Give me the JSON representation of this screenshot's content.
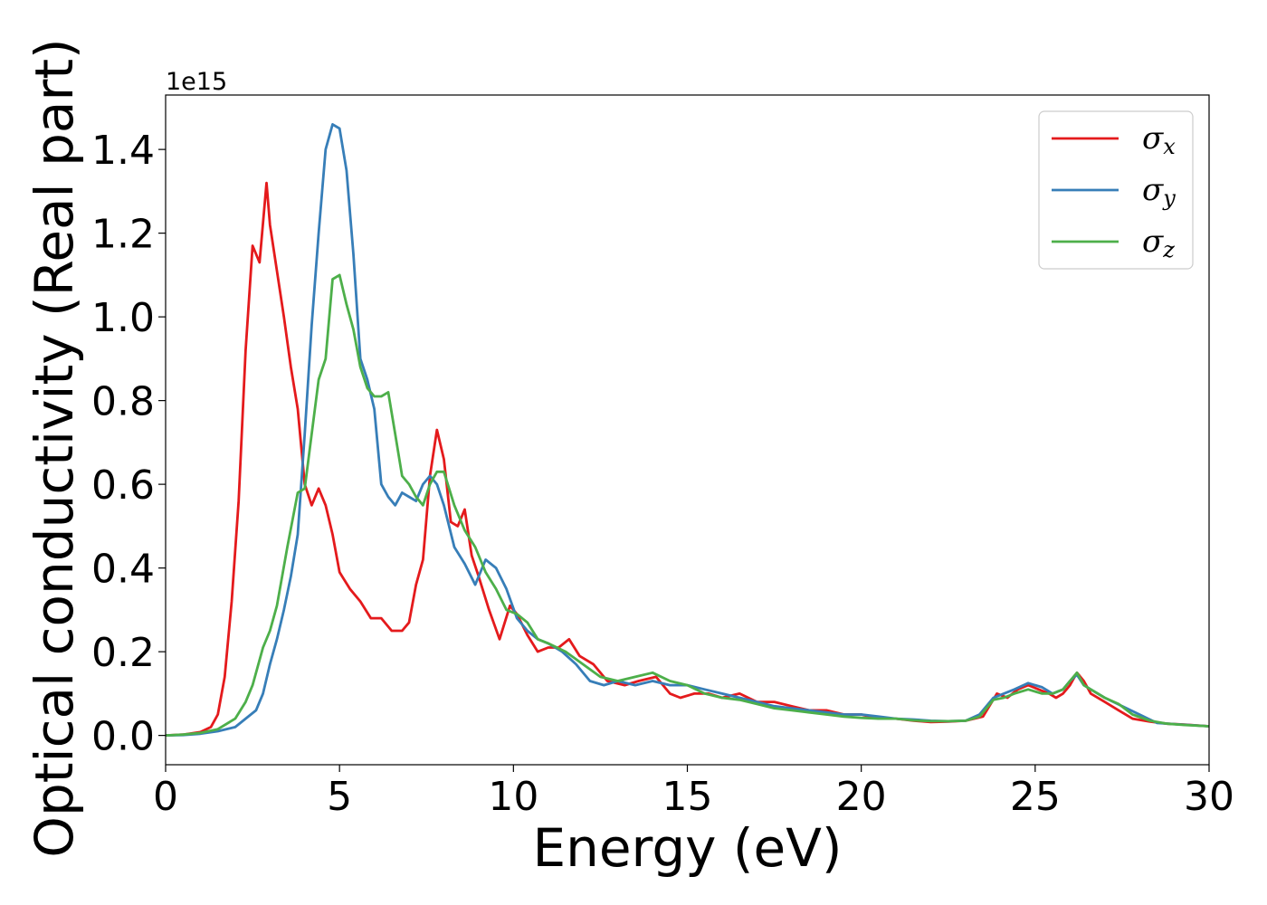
{
  "chart_data": {
    "type": "line",
    "title": "",
    "xlabel": "Energy (eV)",
    "ylabel": "Optical conductivity (Real part)",
    "y_offset_label": "1e15",
    "xlim": [
      0,
      30
    ],
    "ylim": [
      -0.07,
      1.53
    ],
    "xticks": [
      0,
      5,
      10,
      15,
      20,
      25,
      30
    ],
    "xtick_labels": [
      "0",
      "5",
      "10",
      "15",
      "20",
      "25",
      "30"
    ],
    "yticks": [
      0.0,
      0.2,
      0.4,
      0.6,
      0.8,
      1.0,
      1.2,
      1.4
    ],
    "ytick_labels": [
      "0.0",
      "0.2",
      "0.4",
      "0.6",
      "0.8",
      "1.0",
      "1.2",
      "1.4"
    ],
    "grid": false,
    "legend_position": "top-right",
    "series": [
      {
        "name": "σx",
        "symbol": "σ",
        "subscript": "x",
        "color": "#e41a1c",
        "x": [
          0,
          0.5,
          1.0,
          1.3,
          1.5,
          1.7,
          1.9,
          2.1,
          2.3,
          2.5,
          2.7,
          2.9,
          3.0,
          3.2,
          3.4,
          3.6,
          3.8,
          4.0,
          4.2,
          4.4,
          4.6,
          4.8,
          5.0,
          5.3,
          5.6,
          5.9,
          6.2,
          6.5,
          6.8,
          7.0,
          7.2,
          7.4,
          7.6,
          7.8,
          8.0,
          8.2,
          8.4,
          8.6,
          8.8,
          9.0,
          9.3,
          9.6,
          9.9,
          10.1,
          10.4,
          10.7,
          11.0,
          11.3,
          11.6,
          11.9,
          12.3,
          12.7,
          13.2,
          13.6,
          14.1,
          14.5,
          14.8,
          15.2,
          15.6,
          16.0,
          16.5,
          17.0,
          17.5,
          18.0,
          18.5,
          19.0,
          19.5,
          20.0,
          20.5,
          21.0,
          21.5,
          22.0,
          22.5,
          23.0,
          23.5,
          23.9,
          24.2,
          24.5,
          24.8,
          25.1,
          25.4,
          25.6,
          25.8,
          26.0,
          26.2,
          26.4,
          26.6,
          27.0,
          27.4,
          27.8,
          28.3,
          28.8,
          29.3,
          30.0
        ],
        "y": [
          0.0,
          0.002,
          0.008,
          0.02,
          0.05,
          0.14,
          0.32,
          0.56,
          0.92,
          1.17,
          1.13,
          1.32,
          1.22,
          1.11,
          1.0,
          0.88,
          0.78,
          0.6,
          0.55,
          0.59,
          0.55,
          0.48,
          0.39,
          0.35,
          0.32,
          0.28,
          0.28,
          0.25,
          0.25,
          0.27,
          0.36,
          0.42,
          0.62,
          0.73,
          0.66,
          0.51,
          0.5,
          0.54,
          0.43,
          0.38,
          0.3,
          0.23,
          0.31,
          0.29,
          0.24,
          0.2,
          0.21,
          0.21,
          0.23,
          0.19,
          0.17,
          0.13,
          0.12,
          0.13,
          0.14,
          0.1,
          0.09,
          0.1,
          0.1,
          0.09,
          0.1,
          0.08,
          0.08,
          0.07,
          0.06,
          0.06,
          0.05,
          0.05,
          0.04,
          0.04,
          0.035,
          0.032,
          0.033,
          0.035,
          0.045,
          0.1,
          0.09,
          0.11,
          0.12,
          0.11,
          0.1,
          0.09,
          0.1,
          0.12,
          0.15,
          0.13,
          0.1,
          0.08,
          0.06,
          0.04,
          0.033,
          0.028,
          0.026,
          0.022
        ]
      },
      {
        "name": "σy",
        "symbol": "σ",
        "subscript": "y",
        "color": "#377eb8",
        "x": [
          0,
          0.5,
          1.0,
          1.5,
          2.0,
          2.3,
          2.6,
          2.8,
          3.0,
          3.2,
          3.4,
          3.6,
          3.8,
          4.0,
          4.2,
          4.4,
          4.6,
          4.8,
          5.0,
          5.2,
          5.4,
          5.6,
          5.8,
          6.0,
          6.2,
          6.4,
          6.6,
          6.8,
          7.0,
          7.2,
          7.4,
          7.6,
          7.8,
          8.0,
          8.3,
          8.6,
          8.9,
          9.2,
          9.5,
          9.8,
          10.1,
          10.4,
          10.7,
          11.0,
          11.4,
          11.8,
          12.2,
          12.6,
          13.0,
          13.5,
          14.0,
          14.5,
          15.0,
          15.5,
          16.0,
          16.5,
          17.0,
          17.5,
          18.0,
          18.5,
          19.0,
          19.5,
          20.0,
          20.5,
          21.0,
          21.5,
          22.0,
          22.5,
          23.0,
          23.4,
          23.8,
          24.1,
          24.4,
          24.8,
          25.2,
          25.5,
          25.8,
          26.0,
          26.2,
          26.4,
          26.6,
          27.0,
          27.5,
          28.0,
          28.5,
          29.0,
          30.0
        ],
        "y": [
          0.0,
          0.001,
          0.004,
          0.01,
          0.02,
          0.04,
          0.06,
          0.1,
          0.17,
          0.23,
          0.3,
          0.38,
          0.48,
          0.72,
          0.98,
          1.2,
          1.4,
          1.46,
          1.45,
          1.35,
          1.15,
          0.9,
          0.85,
          0.78,
          0.6,
          0.57,
          0.55,
          0.58,
          0.57,
          0.56,
          0.6,
          0.62,
          0.6,
          0.55,
          0.45,
          0.41,
          0.36,
          0.42,
          0.4,
          0.35,
          0.28,
          0.25,
          0.23,
          0.22,
          0.2,
          0.17,
          0.13,
          0.12,
          0.13,
          0.12,
          0.13,
          0.12,
          0.12,
          0.11,
          0.1,
          0.09,
          0.08,
          0.07,
          0.065,
          0.06,
          0.055,
          0.05,
          0.05,
          0.045,
          0.04,
          0.038,
          0.035,
          0.034,
          0.035,
          0.05,
          0.09,
          0.1,
          0.11,
          0.125,
          0.115,
          0.1,
          0.11,
          0.13,
          0.145,
          0.12,
          0.11,
          0.09,
          0.07,
          0.05,
          0.03,
          0.027,
          0.022
        ]
      },
      {
        "name": "σz",
        "symbol": "σ",
        "subscript": "z",
        "color": "#4daf4a",
        "x": [
          0,
          0.5,
          1.0,
          1.5,
          2.0,
          2.3,
          2.5,
          2.8,
          3.0,
          3.2,
          3.5,
          3.8,
          4.0,
          4.2,
          4.4,
          4.6,
          4.8,
          5.0,
          5.2,
          5.4,
          5.6,
          5.8,
          6.0,
          6.2,
          6.4,
          6.6,
          6.8,
          7.0,
          7.2,
          7.4,
          7.6,
          7.8,
          8.0,
          8.3,
          8.6,
          8.9,
          9.2,
          9.5,
          9.8,
          10.1,
          10.4,
          10.7,
          11.0,
          11.5,
          12.0,
          12.5,
          13.0,
          13.5,
          14.0,
          14.5,
          15.0,
          15.5,
          16.0,
          16.5,
          17.0,
          17.5,
          18.0,
          18.5,
          19.0,
          19.5,
          20.0,
          20.5,
          21.0,
          21.5,
          22.0,
          22.5,
          23.0,
          23.4,
          23.8,
          24.1,
          24.4,
          24.8,
          25.2,
          25.5,
          25.8,
          26.0,
          26.2,
          26.4,
          26.6,
          27.0,
          27.4,
          27.8,
          28.3,
          28.8,
          29.3,
          30.0
        ],
        "y": [
          0.0,
          0.002,
          0.006,
          0.015,
          0.04,
          0.08,
          0.12,
          0.21,
          0.25,
          0.31,
          0.45,
          0.58,
          0.59,
          0.72,
          0.85,
          0.9,
          1.09,
          1.1,
          1.03,
          0.97,
          0.88,
          0.83,
          0.81,
          0.81,
          0.82,
          0.72,
          0.62,
          0.6,
          0.57,
          0.55,
          0.6,
          0.63,
          0.63,
          0.55,
          0.49,
          0.45,
          0.39,
          0.35,
          0.3,
          0.29,
          0.27,
          0.23,
          0.22,
          0.2,
          0.17,
          0.14,
          0.13,
          0.14,
          0.15,
          0.13,
          0.12,
          0.1,
          0.09,
          0.085,
          0.075,
          0.065,
          0.06,
          0.055,
          0.05,
          0.045,
          0.042,
          0.04,
          0.04,
          0.036,
          0.034,
          0.034,
          0.035,
          0.045,
          0.085,
          0.09,
          0.1,
          0.11,
          0.1,
          0.1,
          0.11,
          0.13,
          0.15,
          0.12,
          0.11,
          0.09,
          0.075,
          0.05,
          0.035,
          0.028,
          0.025,
          0.022
        ]
      }
    ]
  }
}
